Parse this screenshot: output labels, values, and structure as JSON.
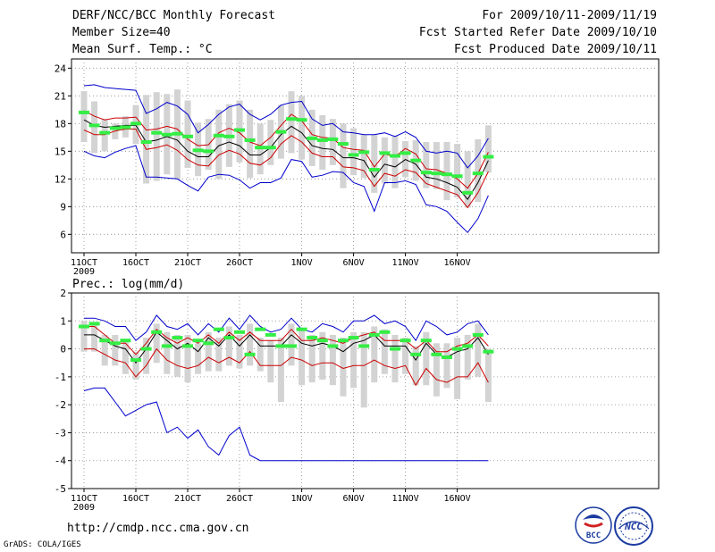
{
  "header": {
    "title": "DERF/NCC/BCC Monthly Forecast",
    "member_size": "Member Size=40",
    "variable": "Mean Surf. Temp.: °C",
    "forecast_period": "For 2009/10/11-2009/11/19",
    "fcst_started": "Fcst Started Refer Date 2009/10/10",
    "fcst_produced": "Fcst Produced Date 2009/10/11"
  },
  "footer": {
    "url": "http://cmdp.ncc.cma.gov.cn",
    "grads": "GrADS: COLA/IGES",
    "logo_bcc": "BCC",
    "logo_ncc": "NCC"
  },
  "colors": {
    "max_min": "#0000cc",
    "spread": "#cc0000",
    "mean": "#000000",
    "box": "#d3d3d3",
    "obs": "#33ee44"
  },
  "chart_data": [
    {
      "type": "line",
      "title": "",
      "ylabel": "Mean Surf. Temp.: °C",
      "ylim": [
        4,
        25
      ],
      "yticks": [
        6,
        9,
        12,
        15,
        18,
        21,
        24
      ],
      "x_tick_days": [
        0,
        5,
        10,
        15,
        21,
        26,
        31,
        36
      ],
      "x_tick_labels": [
        "11OCT",
        "16OCT",
        "21OCT",
        "26OCT",
        "1NOV",
        "6NOV",
        "11NOV",
        "16NOV"
      ],
      "year_label": "2009",
      "days": 40,
      "series": [
        {
          "name": "max",
          "values": [
            22.1,
            22.2,
            21.9,
            21.8,
            21.7,
            21.6,
            19.1,
            19.6,
            20.3,
            19.9,
            19.0,
            17.0,
            17.9,
            19.0,
            19.8,
            20.1,
            19.0,
            18.4,
            19.0,
            20.0,
            20.3,
            20.4,
            18.5,
            17.8,
            18.0,
            17.1,
            17.0,
            16.8,
            16.8,
            17.0,
            16.6,
            17.1,
            16.5,
            15.0,
            14.8,
            15.0,
            14.8,
            13.2,
            14.5,
            16.4
          ]
        },
        {
          "name": "upper",
          "values": [
            19.4,
            18.8,
            18.4,
            18.6,
            18.6,
            18.7,
            17.3,
            17.4,
            17.7,
            17.4,
            16.3,
            15.6,
            15.7,
            17.0,
            17.5,
            17.0,
            16.0,
            15.6,
            16.5,
            17.8,
            19.0,
            18.3,
            16.8,
            16.5,
            16.4,
            15.4,
            15.2,
            15.1,
            13.3,
            14.7,
            14.4,
            15.3,
            14.7,
            13.1,
            13.0,
            12.6,
            12.0,
            11.0,
            12.6,
            14.9
          ]
        },
        {
          "name": "mean",
          "values": [
            18.4,
            17.8,
            17.6,
            17.7,
            17.8,
            17.8,
            16.0,
            16.2,
            16.6,
            16.2,
            15.0,
            14.4,
            14.4,
            15.6,
            16.0,
            15.6,
            14.6,
            14.6,
            15.4,
            16.8,
            17.7,
            17.0,
            15.6,
            15.3,
            15.2,
            14.3,
            14.3,
            14.0,
            12.2,
            13.6,
            13.3,
            14.1,
            13.6,
            12.2,
            12.0,
            11.6,
            11.1,
            9.8,
            11.6,
            14.0
          ]
        },
        {
          "name": "lower",
          "values": [
            17.3,
            16.8,
            16.8,
            17.2,
            17.4,
            17.4,
            15.2,
            15.4,
            15.7,
            15.1,
            14.1,
            13.5,
            13.4,
            14.6,
            15.1,
            14.7,
            13.7,
            13.5,
            14.3,
            15.8,
            16.7,
            16.0,
            14.8,
            14.4,
            14.4,
            13.3,
            13.2,
            12.9,
            11.2,
            12.6,
            12.3,
            13.0,
            12.7,
            11.5,
            11.1,
            10.7,
            10.3,
            8.9,
            10.5,
            12.8
          ]
        },
        {
          "name": "min",
          "values": [
            15.0,
            14.5,
            14.3,
            14.9,
            15.3,
            15.6,
            12.2,
            12.2,
            12.1,
            12.0,
            11.3,
            10.7,
            12.2,
            12.5,
            12.4,
            11.9,
            11.0,
            11.6,
            11.6,
            12.1,
            14.1,
            13.9,
            12.2,
            12.4,
            12.8,
            12.7,
            11.6,
            11.2,
            8.5,
            11.6,
            11.6,
            11.8,
            11.4,
            9.2,
            9.0,
            8.5,
            7.3,
            6.2,
            7.7,
            10.2
          ]
        }
      ],
      "boxes": [
        [
          16.0,
          21.5
        ],
        [
          14.8,
          20.4
        ],
        [
          15.0,
          18.5
        ],
        [
          16.3,
          18.0
        ],
        [
          16.5,
          18.8
        ],
        [
          15.8,
          20.0
        ],
        [
          11.5,
          21.1
        ],
        [
          11.8,
          21.4
        ],
        [
          12.5,
          21.2
        ],
        [
          12.0,
          21.7
        ],
        [
          13.2,
          20.5
        ],
        [
          12.3,
          18.1
        ],
        [
          13.0,
          18.5
        ],
        [
          12.0,
          19.5
        ],
        [
          13.3,
          20.1
        ],
        [
          13.8,
          20.5
        ],
        [
          12.1,
          19.5
        ],
        [
          12.5,
          18.0
        ],
        [
          13.5,
          18.4
        ],
        [
          14.2,
          20.0
        ],
        [
          14.8,
          21.5
        ],
        [
          14.1,
          21.0
        ],
        [
          13.4,
          19.5
        ],
        [
          13.0,
          18.9
        ],
        [
          13.5,
          18.5
        ],
        [
          11.0,
          18.0
        ],
        [
          12.4,
          17.5
        ],
        [
          12.1,
          16.8
        ],
        [
          10.5,
          16.8
        ],
        [
          11.5,
          16.5
        ],
        [
          11.0,
          16.7
        ],
        [
          12.2,
          16.1
        ],
        [
          11.8,
          16.2
        ],
        [
          11.0,
          16.0
        ],
        [
          10.9,
          16.0
        ],
        [
          9.7,
          16.0
        ],
        [
          10.0,
          15.8
        ],
        [
          8.9,
          15.0
        ],
        [
          9.5,
          16.3
        ],
        [
          12.7,
          17.8
        ]
      ],
      "observed": [
        19.2,
        17.8,
        17.0,
        17.5,
        17.6,
        18.0,
        16.0,
        17.0,
        16.8,
        16.9,
        16.6,
        15.1,
        15.0,
        16.7,
        16.6,
        17.3,
        16.2,
        15.4,
        15.4,
        17.1,
        18.5,
        18.4,
        16.4,
        16.2,
        16.3,
        15.8,
        14.6,
        14.9,
        13.0,
        14.8,
        14.5,
        14.8,
        14.0,
        12.7,
        12.6,
        12.5,
        12.3,
        10.5,
        12.6,
        14.4
      ]
    },
    {
      "type": "line",
      "title": "",
      "ylabel": "Prec.: log(mm/d)",
      "ylim": [
        -5,
        2
      ],
      "yticks": [
        -5,
        -4,
        -3,
        -2,
        -1,
        0,
        1,
        2
      ],
      "x_tick_days": [
        0,
        5,
        10,
        15,
        21,
        26,
        31,
        36
      ],
      "x_tick_labels": [
        "11OCT",
        "16OCT",
        "21OCT",
        "26OCT",
        "1NOV",
        "6NOV",
        "11NOV",
        "16NOV"
      ],
      "year_label": "2009",
      "days": 40,
      "series": [
        {
          "name": "max",
          "values": [
            1.1,
            1.1,
            1.0,
            0.8,
            0.8,
            0.3,
            0.6,
            1.2,
            0.8,
            0.7,
            0.9,
            0.5,
            0.9,
            0.6,
            1.1,
            0.7,
            1.2,
            0.8,
            0.6,
            0.7,
            1.1,
            0.7,
            0.6,
            0.9,
            0.8,
            0.6,
            1.0,
            1.0,
            1.2,
            0.9,
            1.0,
            0.8,
            0.3,
            1.0,
            0.8,
            0.5,
            0.6,
            0.9,
            1.0,
            0.5
          ]
        },
        {
          "name": "upper",
          "values": [
            0.8,
            0.8,
            0.5,
            0.2,
            0.2,
            -0.2,
            0.2,
            0.7,
            0.4,
            0.2,
            0.4,
            0.2,
            0.5,
            0.2,
            0.6,
            0.3,
            0.6,
            0.3,
            0.3,
            0.3,
            0.7,
            0.3,
            0.3,
            0.4,
            0.3,
            0.2,
            0.4,
            0.5,
            0.6,
            0.3,
            0.3,
            0.3,
            0.0,
            0.3,
            -0.1,
            -0.1,
            0.1,
            0.2,
            0.5,
            0.1
          ]
        },
        {
          "name": "mean",
          "values": [
            0.5,
            0.5,
            0.3,
            0.1,
            0.0,
            -0.5,
            0.0,
            0.6,
            0.3,
            0.0,
            0.2,
            -0.1,
            0.4,
            0.1,
            0.5,
            0.1,
            0.5,
            0.1,
            0.1,
            0.1,
            0.5,
            0.2,
            0.1,
            0.2,
            0.1,
            -0.1,
            0.2,
            0.3,
            0.5,
            0.1,
            0.1,
            0.1,
            -0.4,
            0.2,
            -0.2,
            -0.3,
            -0.1,
            0.0,
            0.4,
            -0.2
          ]
        },
        {
          "name": "lower",
          "values": [
            0.0,
            0.0,
            -0.2,
            -0.4,
            -0.5,
            -1.0,
            -0.6,
            0.0,
            -0.4,
            -0.6,
            -0.7,
            -0.6,
            -0.3,
            -0.5,
            -0.3,
            -0.5,
            -0.1,
            -0.6,
            -0.6,
            -0.6,
            -0.3,
            -0.4,
            -0.6,
            -0.5,
            -0.5,
            -0.7,
            -0.6,
            -0.6,
            -0.4,
            -0.6,
            -0.7,
            -0.6,
            -1.3,
            -0.7,
            -1.1,
            -1.2,
            -1.0,
            -1.0,
            -0.5,
            -1.2
          ]
        },
        {
          "name": "min",
          "values": [
            -1.5,
            -1.4,
            -1.4,
            -1.9,
            -2.4,
            -2.2,
            -2.0,
            -1.9,
            -3.0,
            -2.8,
            -3.2,
            -2.9,
            -3.5,
            -3.8,
            -3.1,
            -2.8,
            -3.8,
            -4.0,
            -4.0,
            -4.0,
            -4.0,
            -4.0,
            -4.0,
            -4.0,
            -4.0,
            -4.0,
            -4.0,
            -4.0,
            -4.0,
            -4.0,
            -4.0,
            -4.0,
            -4.0,
            -4.0,
            -4.0,
            -4.0,
            -4.0,
            -4.0,
            -4.0,
            -4.0
          ]
        }
      ],
      "boxes": [
        [
          -0.1,
          1.0
        ],
        [
          -0.1,
          0.9
        ],
        [
          -0.6,
          0.5
        ],
        [
          -0.6,
          0.5
        ],
        [
          -0.9,
          0.3
        ],
        [
          -1.1,
          -0.1
        ],
        [
          -0.9,
          0.4
        ],
        [
          -0.5,
          0.9
        ],
        [
          -0.9,
          0.6
        ],
        [
          -1.0,
          0.5
        ],
        [
          -1.2,
          0.5
        ],
        [
          -0.9,
          0.2
        ],
        [
          -0.8,
          0.6
        ],
        [
          -0.8,
          0.4
        ],
        [
          -0.6,
          0.8
        ],
        [
          -0.7,
          0.5
        ],
        [
          -0.6,
          0.9
        ],
        [
          -0.8,
          0.4
        ],
        [
          -1.2,
          0.3
        ],
        [
          -1.9,
          0.4
        ],
        [
          -0.6,
          0.9
        ],
        [
          -1.3,
          0.7
        ],
        [
          -1.2,
          0.5
        ],
        [
          -1.1,
          0.6
        ],
        [
          -1.3,
          0.5
        ],
        [
          -1.7,
          0.4
        ],
        [
          -1.4,
          0.6
        ],
        [
          -2.1,
          0.6
        ],
        [
          -1.2,
          0.8
        ],
        [
          -0.9,
          0.7
        ],
        [
          -1.2,
          0.5
        ],
        [
          -0.9,
          0.4
        ],
        [
          -1.3,
          0.1
        ],
        [
          -1.3,
          0.6
        ],
        [
          -1.7,
          0.2
        ],
        [
          -1.4,
          0.2
        ],
        [
          -1.8,
          0.4
        ],
        [
          -1.1,
          0.5
        ],
        [
          -1.0,
          0.9
        ],
        [
          -1.9,
          0.0
        ]
      ],
      "observed": [
        0.8,
        0.9,
        0.3,
        0.2,
        0.3,
        -0.4,
        0.0,
        0.6,
        0.1,
        0.4,
        0.1,
        0.3,
        0.2,
        0.7,
        0.4,
        0.6,
        -0.2,
        0.7,
        0.5,
        0.1,
        0.1,
        0.7,
        0.4,
        0.3,
        0.1,
        0.3,
        0.4,
        0.1,
        0.5,
        0.6,
        0.0,
        0.3,
        -0.2,
        0.3,
        -0.2,
        -0.3,
        0.0,
        0.1,
        0.5,
        -0.1
      ]
    }
  ]
}
